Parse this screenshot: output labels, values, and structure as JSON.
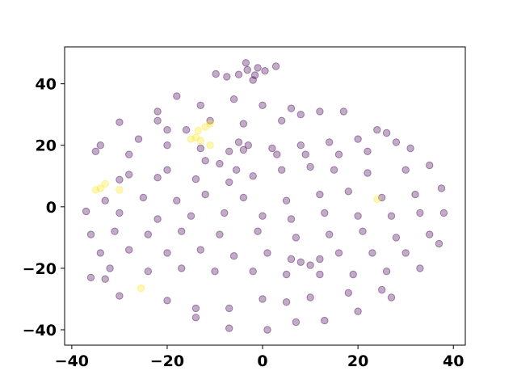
{
  "chart_data": {
    "type": "scatter",
    "title": "",
    "xlabel": "",
    "ylabel": "",
    "xlim": [
      -41.5,
      42.5
    ],
    "ylim": [
      -45,
      52
    ],
    "xticks": [
      -40,
      -20,
      0,
      20,
      40
    ],
    "yticks": [
      -40,
      -20,
      0,
      20,
      40
    ],
    "grid": false,
    "marker_alpha": 0.33,
    "colors": {
      "class_0": "#440154",
      "class_1": "#fde725",
      "axes": "#000000",
      "background": "#ffffff"
    },
    "series": [
      {
        "points_sampled": [
          [
            -3.5,
            46.8
          ],
          [
            -1.0,
            45.2
          ],
          [
            -5.0,
            43.0
          ],
          [
            0.5,
            44.2
          ],
          [
            -2.0,
            41.2
          ],
          [
            -9.8,
            43.2
          ],
          [
            -7.5,
            42.3
          ],
          [
            2.8,
            45.7
          ],
          [
            -3.2,
            44.5
          ],
          [
            -1.6,
            42.8
          ],
          [
            -12.0,
            15.0
          ],
          [
            -9.0,
            14.0
          ],
          [
            -5.5,
            12.0
          ],
          [
            -20.0,
            12.0
          ],
          [
            -28.0,
            10.5
          ],
          [
            -30.0,
            8.8
          ],
          [
            -22.0,
            9.5
          ],
          [
            -14.0,
            9.0
          ],
          [
            -7.0,
            8.0
          ],
          [
            -2.0,
            10.0
          ],
          [
            4.0,
            12.0
          ],
          [
            10.0,
            13.0
          ],
          [
            15.0,
            12.0
          ],
          [
            22.0,
            11.0
          ],
          [
            30.0,
            12.0
          ],
          [
            35.0,
            13.5
          ],
          [
            37.5,
            6.0
          ],
          [
            32.0,
            4.0
          ],
          [
            25.0,
            3.0
          ],
          [
            18.0,
            5.0
          ],
          [
            12.0,
            4.0
          ],
          [
            5.0,
            2.0
          ],
          [
            -4.0,
            3.0
          ],
          [
            -12.0,
            4.0
          ],
          [
            -18.0,
            2.0
          ],
          [
            -25.0,
            3.0
          ],
          [
            -33.0,
            2.0
          ],
          [
            -37.0,
            -1.5
          ],
          [
            -30.0,
            -2.0
          ],
          [
            -22.0,
            -4.0
          ],
          [
            -15.0,
            -3.0
          ],
          [
            -8.0,
            -2.0
          ],
          [
            0.0,
            -3.0
          ],
          [
            6.0,
            -4.0
          ],
          [
            13.0,
            -2.0
          ],
          [
            20.0,
            -3.0
          ],
          [
            27.0,
            -3.0
          ],
          [
            33.0,
            -2.0
          ],
          [
            38.0,
            -2.0
          ],
          [
            35.0,
            -9.0
          ],
          [
            28.0,
            -10.0
          ],
          [
            21.0,
            -8.0
          ],
          [
            14.0,
            -9.0
          ],
          [
            7.0,
            -10.0
          ],
          [
            -1.0,
            -8.0
          ],
          [
            -9.0,
            -9.0
          ],
          [
            -17.0,
            -8.0
          ],
          [
            -24.0,
            -9.0
          ],
          [
            -31.0,
            -8.0
          ],
          [
            -36.0,
            -9.0
          ],
          [
            -34.0,
            -15.0
          ],
          [
            -28.0,
            -14.0
          ],
          [
            -20.0,
            -15.0
          ],
          [
            -13.0,
            -14.0
          ],
          [
            -6.0,
            -16.0
          ],
          [
            1.0,
            -15.0
          ],
          [
            6.0,
            -17.0
          ],
          [
            8.0,
            -18.0
          ],
          [
            10.0,
            -19.0
          ],
          [
            12.0,
            -17.0
          ],
          [
            16.0,
            -15.0
          ],
          [
            23.0,
            -15.0
          ],
          [
            30.0,
            -15.0
          ],
          [
            37.0,
            -12.0
          ],
          [
            33.0,
            -20.0
          ],
          [
            26.0,
            -21.0
          ],
          [
            19.0,
            -22.0
          ],
          [
            12.0,
            -22.0
          ],
          [
            5.0,
            -22.0
          ],
          [
            -2.0,
            -21.0
          ],
          [
            -10.0,
            -21.0
          ],
          [
            -17.0,
            -20.0
          ],
          [
            -24.0,
            -21.0
          ],
          [
            -32.0,
            -20.0
          ],
          [
            -36.0,
            -23.0
          ],
          [
            -33.0,
            -23.5
          ],
          [
            -30.0,
            -29.0
          ],
          [
            -20.0,
            -30.5
          ],
          [
            -14.0,
            -33.0
          ],
          [
            -7.0,
            -33.0
          ],
          [
            0.0,
            -30.0
          ],
          [
            5.0,
            -31.0
          ],
          [
            10.0,
            -29.5
          ],
          [
            18.0,
            -28.0
          ],
          [
            25.0,
            -27.0
          ],
          [
            27.0,
            -29.5
          ],
          [
            20.0,
            -34.0
          ],
          [
            13.0,
            -37.0
          ],
          [
            7.0,
            -37.5
          ],
          [
            1.0,
            -40.0
          ],
          [
            -7.0,
            -39.5
          ],
          [
            -14.0,
            -36.0
          ],
          [
            8.0,
            30.0
          ],
          [
            4.0,
            28.0
          ],
          [
            -4.0,
            27.0
          ],
          [
            -11.0,
            28.0
          ],
          [
            -16.0,
            25.0
          ],
          [
            -22.0,
            28.0
          ],
          [
            -20.0,
            25.0
          ],
          [
            -26.0,
            22.0
          ],
          [
            -30.0,
            27.5
          ],
          [
            -34.0,
            20.0
          ],
          [
            -35.0,
            18.0
          ],
          [
            -28.0,
            17.0
          ],
          [
            -20.0,
            20.0
          ],
          [
            -13.0,
            19.0
          ],
          [
            -7.0,
            18.0
          ],
          [
            -3.0,
            20.0
          ],
          [
            2.0,
            19.0
          ],
          [
            8.0,
            20.0
          ],
          [
            14.0,
            21.0
          ],
          [
            20.0,
            22.0
          ],
          [
            26.0,
            24.0
          ],
          [
            28.0,
            21.0
          ],
          [
            22.0,
            18.0
          ],
          [
            16.0,
            17.0
          ],
          [
            9.0,
            17.0
          ],
          [
            3.0,
            17.0
          ],
          [
            -5.0,
            21.0
          ],
          [
            -4.0,
            18.5
          ],
          [
            17.0,
            31.0
          ],
          [
            12.0,
            31.0
          ],
          [
            0.0,
            33.0
          ],
          [
            -6.0,
            35.0
          ],
          [
            -13.0,
            33.0
          ],
          [
            -18.0,
            36.0
          ],
          [
            -22.0,
            31.0
          ],
          [
            6.0,
            32.0
          ],
          [
            24.0,
            25.0
          ],
          [
            31.0,
            19.0
          ]
        ]
      },
      {
        "points_sampled": [
          [
            -12.0,
            26.0
          ],
          [
            -13.5,
            24.8
          ],
          [
            -11.0,
            27.0
          ],
          [
            -14.0,
            22.5
          ],
          [
            -13.0,
            21.5
          ],
          [
            -15.0,
            22.0
          ],
          [
            -34.0,
            6.0
          ],
          [
            -33.0,
            7.5
          ],
          [
            -35.0,
            5.5
          ],
          [
            -30.0,
            5.5
          ],
          [
            -25.5,
            -26.5
          ],
          [
            24.0,
            2.5
          ],
          [
            -11.0,
            20.0
          ]
        ]
      }
    ]
  }
}
